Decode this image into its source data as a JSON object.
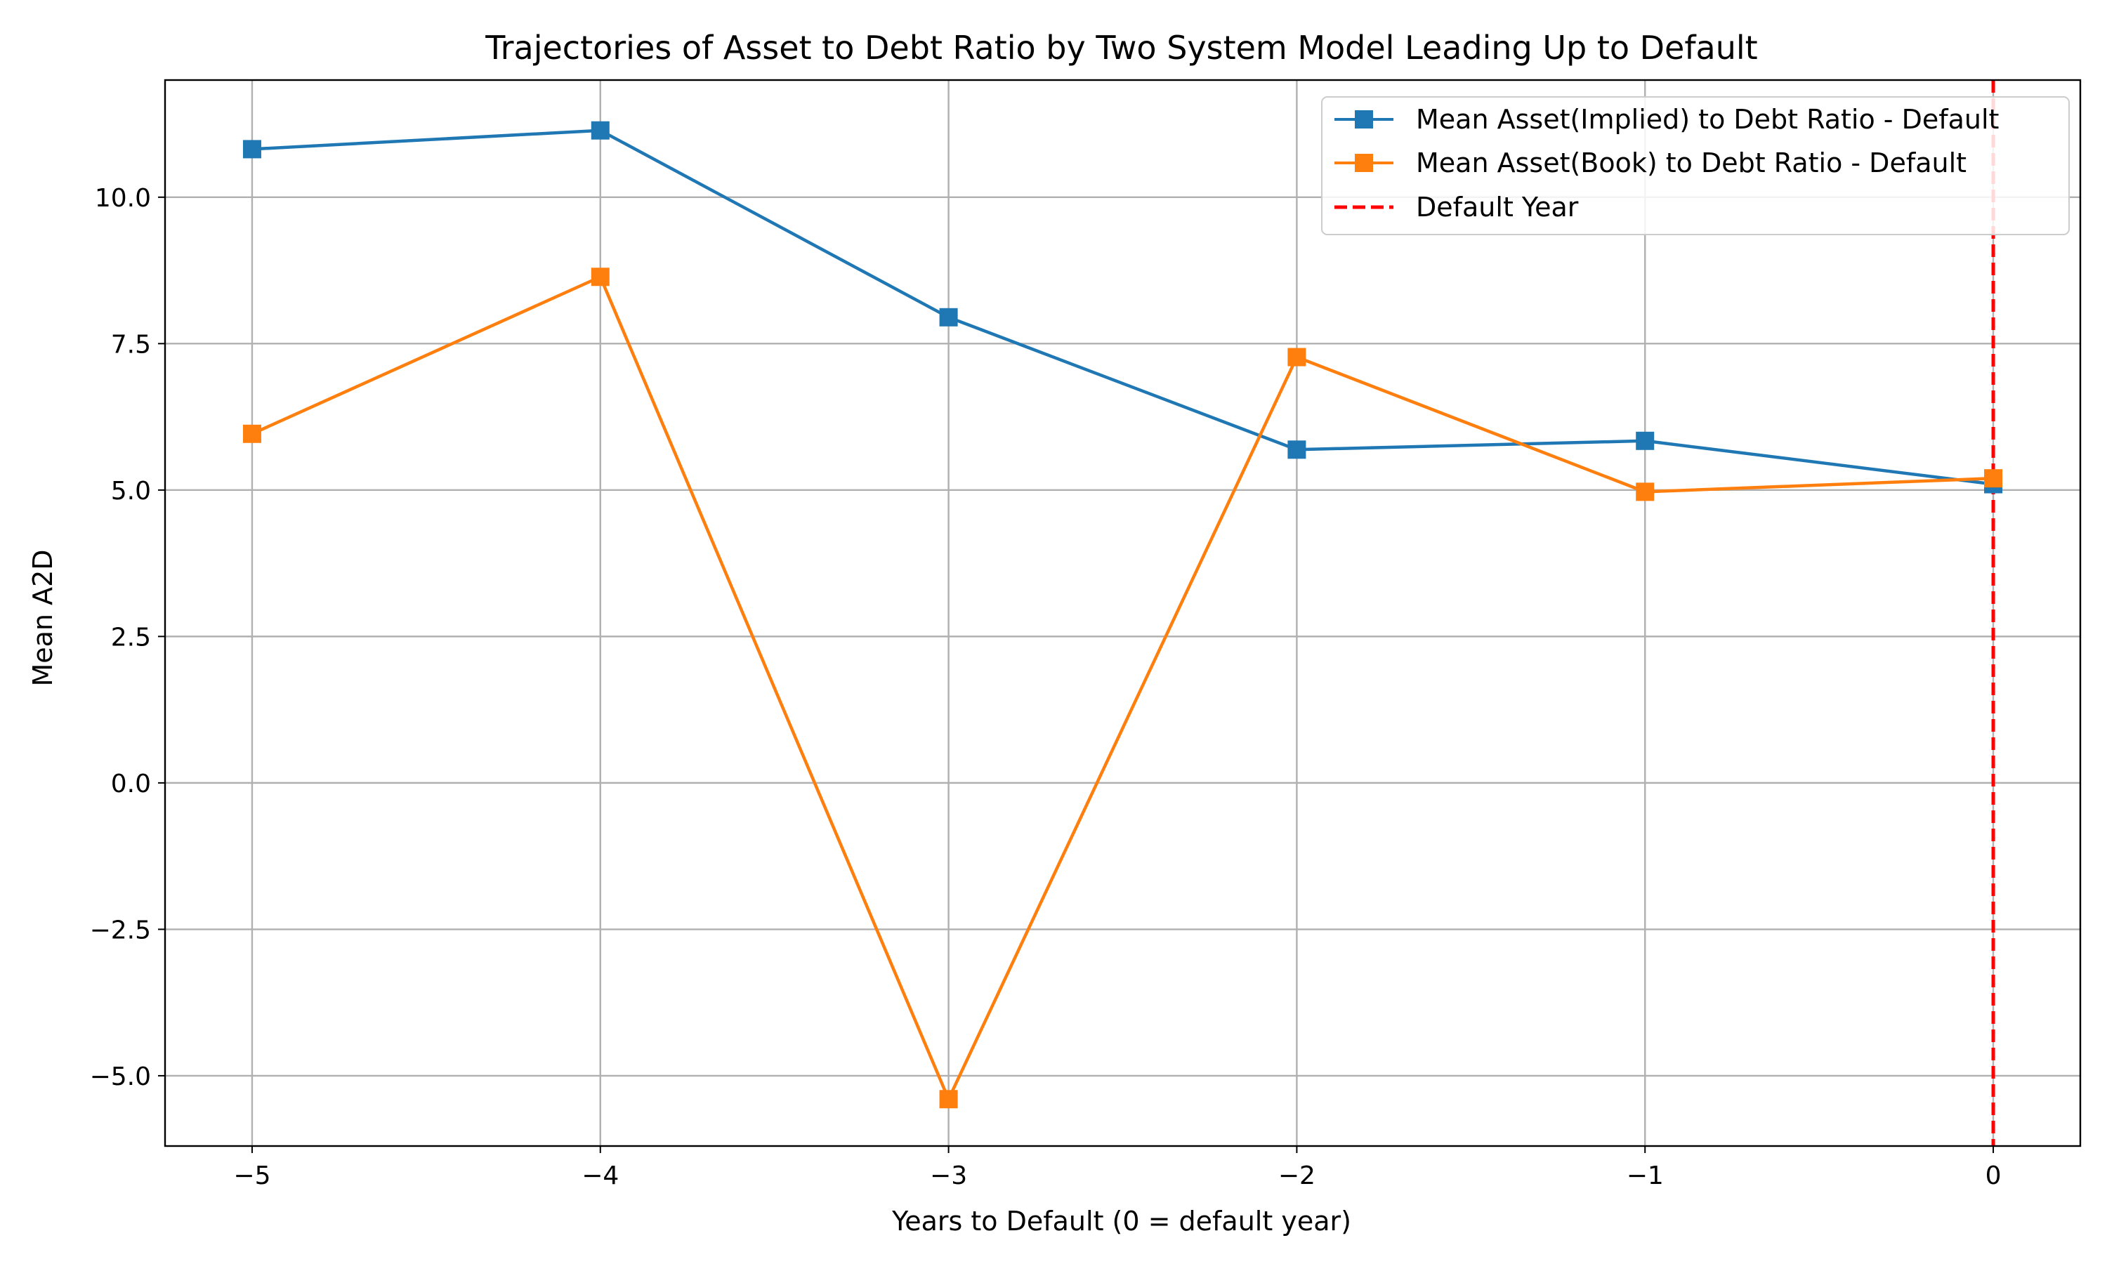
{
  "chart_data": {
    "type": "line",
    "title": "Trajectories of Asset to Debt Ratio by Two System Model Leading Up to Default",
    "xlabel": "Years to Default (0 = default year)",
    "ylabel": "Mean A2D",
    "xlim": [
      -5.25,
      0.25
    ],
    "ylim": [
      -6.2,
      12.0
    ],
    "grid": true,
    "legend_position": "top-right",
    "x": [
      -5,
      -4,
      -3,
      -2,
      -1,
      0
    ],
    "series": [
      {
        "name": "Mean Asset(Implied) to Debt Ratio - Default",
        "color": "#1f77b4",
        "marker": "square",
        "values": [
          10.82,
          11.14,
          7.95,
          5.69,
          5.84,
          5.1
        ]
      },
      {
        "name": "Mean Asset(Book) to Debt Ratio - Default",
        "color": "#ff7f0e",
        "marker": "square",
        "values": [
          5.96,
          8.64,
          -5.4,
          7.27,
          4.97,
          5.2
        ]
      }
    ],
    "vline": {
      "name": "Default Year",
      "x": 0,
      "color": "#ff0000",
      "style": "dashed"
    },
    "x_ticks": [
      {
        "value": -5,
        "label": "−5"
      },
      {
        "value": -4,
        "label": "−4"
      },
      {
        "value": -3,
        "label": "−3"
      },
      {
        "value": -2,
        "label": "−2"
      },
      {
        "value": -1,
        "label": "−1"
      },
      {
        "value": 0,
        "label": "0"
      }
    ],
    "y_ticks": [
      {
        "value": -5.0,
        "label": "−5.0"
      },
      {
        "value": -2.5,
        "label": "−2.5"
      },
      {
        "value": 0.0,
        "label": "0.0"
      },
      {
        "value": 2.5,
        "label": "2.5"
      },
      {
        "value": 5.0,
        "label": "5.0"
      },
      {
        "value": 7.5,
        "label": "7.5"
      },
      {
        "value": 10.0,
        "label": "10.0"
      }
    ]
  }
}
